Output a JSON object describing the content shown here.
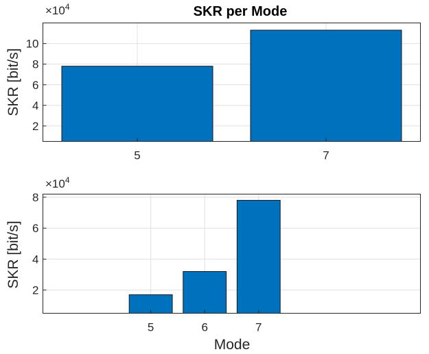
{
  "colors": {
    "bar": "#0072bd"
  },
  "chart_data": [
    {
      "type": "bar",
      "title": "SKR per Mode",
      "ylabel": "SKR [bit/s]",
      "xlabel": "",
      "exponent_label": "×10",
      "exponent_power": "4",
      "categories": [
        "5",
        "7"
      ],
      "values": [
        78000,
        113000
      ],
      "xlim": [
        4,
        8
      ],
      "ylim": [
        5000,
        120000
      ],
      "yticks": [
        20000,
        40000,
        60000,
        80000,
        100000
      ],
      "ytick_labels": [
        "2",
        "4",
        "6",
        "8",
        "10"
      ],
      "bar_width": 1.6,
      "grid": true
    },
    {
      "type": "bar",
      "title": "",
      "ylabel": "SKR [bit/s]",
      "xlabel": "Mode",
      "exponent_label": "×10",
      "exponent_power": "4",
      "categories": [
        "5",
        "6",
        "7"
      ],
      "values": [
        17000,
        32000,
        78000
      ],
      "xlim": [
        3,
        10
      ],
      "ylim": [
        5000,
        82000
      ],
      "yticks": [
        20000,
        40000,
        60000,
        80000
      ],
      "ytick_labels": [
        "2",
        "4",
        "6",
        "8"
      ],
      "bar_width": 0.8,
      "grid": true
    }
  ]
}
